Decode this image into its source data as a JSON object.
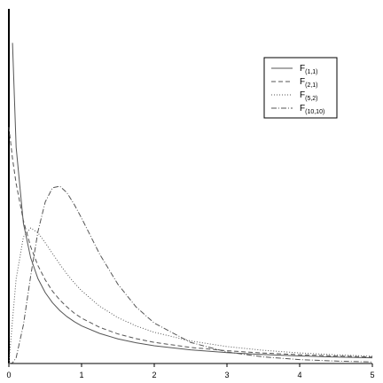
{
  "chart_data": {
    "type": "line",
    "x": [
      0,
      0.05,
      0.1,
      0.2,
      0.3,
      0.4,
      0.5,
      0.6,
      0.7,
      0.8,
      0.9,
      1,
      1.25,
      1.5,
      1.75,
      2,
      2.5,
      3,
      3.5,
      4,
      4.5,
      5
    ],
    "series": [
      {
        "name": "F(1,1)",
        "color": "#555555",
        "dash": "solid",
        "values": [
          null,
          1.356,
          0.915,
          0.593,
          0.447,
          0.359,
          0.3,
          0.257,
          0.224,
          0.198,
          0.177,
          0.159,
          0.127,
          0.104,
          0.0875,
          0.075,
          0.0575,
          0.046,
          0.0378,
          0.0318,
          0.0273,
          0.0237
        ]
      },
      {
        "name": "F(2,1)",
        "color": "#555555",
        "dash": "dashed",
        "values": [
          1,
          0.867,
          0.761,
          0.604,
          0.494,
          0.414,
          0.354,
          0.306,
          0.269,
          0.239,
          0.213,
          0.192,
          0.153,
          0.125,
          0.105,
          0.0894,
          0.068,
          0.054,
          0.0442,
          0.037,
          0.0316,
          0.0274
        ]
      },
      {
        "name": "F(5,2)",
        "color": "#555555",
        "dash": "dotted",
        "values": [
          0,
          0.183,
          0.358,
          0.535,
          0.573,
          0.553,
          0.511,
          0.465,
          0.42,
          0.378,
          0.341,
          0.308,
          0.242,
          0.194,
          0.159,
          0.132,
          0.0952,
          0.0716,
          0.0558,
          0.0447,
          0.0366,
          0.0306
        ]
      },
      {
        "name": "F(10,10)",
        "color": "#555555",
        "dash": "dashdot",
        "values": [
          0,
          0.00242,
          0.0243,
          0.163,
          0.37,
          0.558,
          0.683,
          0.743,
          0.75,
          0.722,
          0.672,
          0.615,
          0.462,
          0.335,
          0.239,
          0.171,
          0.0891,
          0.0487,
          0.0278,
          0.0165,
          0.0102,
          0.0065
        ]
      }
    ],
    "xlim": [
      0,
      5
    ],
    "xticks": [
      0,
      1,
      2,
      3,
      4,
      5
    ],
    "ylim": [
      0,
      1.5
    ],
    "legend": "upper right"
  }
}
